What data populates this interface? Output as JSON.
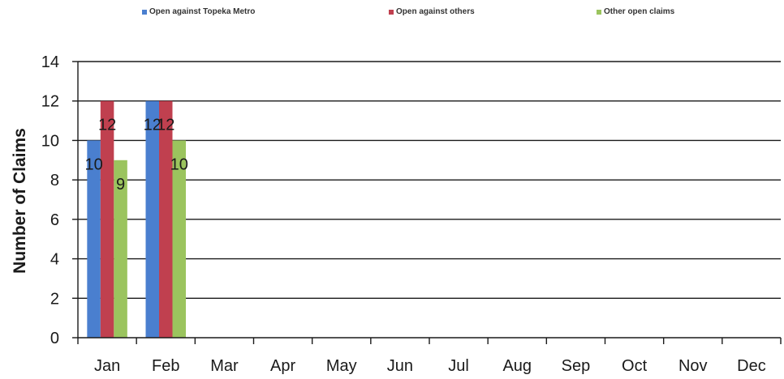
{
  "chart_data": {
    "type": "bar",
    "title": "",
    "xlabel": "",
    "ylabel": "Number of Claims",
    "ylim": [
      0,
      14
    ],
    "yticks": [
      0,
      2,
      4,
      6,
      8,
      10,
      12,
      14
    ],
    "grid": true,
    "legend_position": "top",
    "categories": [
      "Jan",
      "Feb",
      "Mar",
      "Apr",
      "May",
      "Jun",
      "Jul",
      "Aug",
      "Sep",
      "Oct",
      "Nov",
      "Dec"
    ],
    "series": [
      {
        "name": "Open against Topeka Metro",
        "color": "#4a7fcf",
        "values": [
          10,
          12,
          null,
          null,
          null,
          null,
          null,
          null,
          null,
          null,
          null,
          null
        ]
      },
      {
        "name": "Open against others",
        "color": "#c0404f",
        "values": [
          12,
          12,
          null,
          null,
          null,
          null,
          null,
          null,
          null,
          null,
          null,
          null
        ]
      },
      {
        "name": "Other open claims",
        "color": "#9bc45e",
        "values": [
          9,
          10,
          null,
          null,
          null,
          null,
          null,
          null,
          null,
          null,
          null,
          null
        ]
      }
    ]
  }
}
